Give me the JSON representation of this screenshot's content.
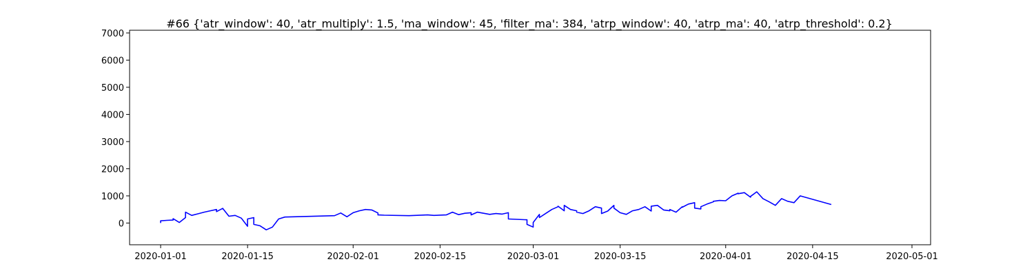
{
  "chart_data": {
    "type": "line",
    "title": "#66 {'atr_window': 40, 'atr_multiply': 1.5, 'ma_window': 45, 'filter_ma': 384, 'atrp_window': 40, 'atrp_ma': 40, 'atrp_threshold': 0.2}",
    "xlabel": "",
    "ylabel": "",
    "x_type": "date",
    "xlim": [
      "2019-12-27",
      "2020-05-04"
    ],
    "ylim": [
      -800,
      7100
    ],
    "x_ticks": [
      "2020-01-01",
      "2020-01-15",
      "2020-02-01",
      "2020-02-15",
      "2020-03-01",
      "2020-03-15",
      "2020-04-01",
      "2020-04-15",
      "2020-05-01"
    ],
    "y_ticks": [
      0,
      1000,
      2000,
      3000,
      4000,
      5000,
      6000,
      7000
    ],
    "grid": false,
    "legend": "none",
    "series": [
      {
        "color": "#0000ff",
        "points": [
          [
            "2020-01-01",
            0
          ],
          [
            "2020-01-01",
            80
          ],
          [
            "2020-01-02",
            100
          ],
          [
            "2020-01-03",
            110
          ],
          [
            "2020-01-03",
            160
          ],
          [
            "2020-01-04",
            20
          ],
          [
            "2020-01-05",
            200
          ],
          [
            "2020-01-05",
            400
          ],
          [
            "2020-01-06",
            280
          ],
          [
            "2020-01-07",
            340
          ],
          [
            "2020-01-08",
            400
          ],
          [
            "2020-01-09",
            450
          ],
          [
            "2020-01-10",
            500
          ],
          [
            "2020-01-10",
            420
          ],
          [
            "2020-01-11",
            540
          ],
          [
            "2020-01-12",
            250
          ],
          [
            "2020-01-13",
            280
          ],
          [
            "2020-01-14",
            180
          ],
          [
            "2020-01-15",
            -120
          ],
          [
            "2020-01-15",
            150
          ],
          [
            "2020-01-16",
            200
          ],
          [
            "2020-01-16",
            -50
          ],
          [
            "2020-01-17",
            -100
          ],
          [
            "2020-01-18",
            -250
          ],
          [
            "2020-01-19",
            -150
          ],
          [
            "2020-01-20",
            150
          ],
          [
            "2020-01-21",
            220
          ],
          [
            "2020-01-29",
            270
          ],
          [
            "2020-01-30",
            370
          ],
          [
            "2020-01-31",
            230
          ],
          [
            "2020-02-01",
            380
          ],
          [
            "2020-02-02",
            450
          ],
          [
            "2020-02-03",
            500
          ],
          [
            "2020-02-04",
            480
          ],
          [
            "2020-02-05",
            370
          ],
          [
            "2020-02-05",
            300
          ],
          [
            "2020-02-06",
            290
          ],
          [
            "2020-02-10",
            270
          ],
          [
            "2020-02-13",
            300
          ],
          [
            "2020-02-14",
            280
          ],
          [
            "2020-02-16",
            300
          ],
          [
            "2020-02-17",
            400
          ],
          [
            "2020-02-18",
            310
          ],
          [
            "2020-02-19",
            360
          ],
          [
            "2020-02-20",
            380
          ],
          [
            "2020-02-20",
            300
          ],
          [
            "2020-02-21",
            400
          ],
          [
            "2020-02-22",
            360
          ],
          [
            "2020-02-23",
            320
          ],
          [
            "2020-02-24",
            350
          ],
          [
            "2020-02-25",
            330
          ],
          [
            "2020-02-26",
            380
          ],
          [
            "2020-02-26",
            150
          ],
          [
            "2020-02-29",
            120
          ],
          [
            "2020-02-29",
            -50
          ],
          [
            "2020-03-01",
            -150
          ],
          [
            "2020-03-01",
            20
          ],
          [
            "2020-03-02",
            320
          ],
          [
            "2020-03-02",
            200
          ],
          [
            "2020-03-03",
            350
          ],
          [
            "2020-03-04",
            500
          ],
          [
            "2020-03-05",
            600
          ],
          [
            "2020-03-05",
            620
          ],
          [
            "2020-03-06",
            450
          ],
          [
            "2020-03-06",
            650
          ],
          [
            "2020-03-07",
            500
          ],
          [
            "2020-03-08",
            450
          ],
          [
            "2020-03-08",
            400
          ],
          [
            "2020-03-09",
            350
          ],
          [
            "2020-03-10",
            450
          ],
          [
            "2020-03-11",
            600
          ],
          [
            "2020-03-12",
            550
          ],
          [
            "2020-03-12",
            350
          ],
          [
            "2020-03-13",
            440
          ],
          [
            "2020-03-14",
            650
          ],
          [
            "2020-03-14",
            550
          ],
          [
            "2020-03-15",
            380
          ],
          [
            "2020-03-16",
            320
          ],
          [
            "2020-03-17",
            450
          ],
          [
            "2020-03-18",
            500
          ],
          [
            "2020-03-19",
            600
          ],
          [
            "2020-03-20",
            440
          ],
          [
            "2020-03-20",
            620
          ],
          [
            "2020-03-21",
            650
          ],
          [
            "2020-03-22",
            480
          ],
          [
            "2020-03-23",
            450
          ],
          [
            "2020-03-23",
            500
          ],
          [
            "2020-03-24",
            400
          ],
          [
            "2020-03-25",
            600
          ],
          [
            "2020-03-25",
            580
          ],
          [
            "2020-03-26",
            700
          ],
          [
            "2020-03-27",
            750
          ],
          [
            "2020-03-27",
            550
          ],
          [
            "2020-03-28",
            520
          ],
          [
            "2020-03-28",
            600
          ],
          [
            "2020-03-29",
            700
          ],
          [
            "2020-03-30",
            780
          ],
          [
            "2020-03-30",
            800
          ],
          [
            "2020-03-31",
            830
          ],
          [
            "2020-04-01",
            820
          ],
          [
            "2020-04-02",
            1000
          ],
          [
            "2020-04-03",
            1100
          ],
          [
            "2020-04-03",
            1080
          ],
          [
            "2020-04-04",
            1120
          ],
          [
            "2020-04-05",
            950
          ],
          [
            "2020-04-05",
            980
          ],
          [
            "2020-04-06",
            1150
          ],
          [
            "2020-04-07",
            900
          ],
          [
            "2020-04-08",
            780
          ],
          [
            "2020-04-09",
            650
          ],
          [
            "2020-04-10",
            900
          ],
          [
            "2020-04-11",
            800
          ],
          [
            "2020-04-12",
            750
          ],
          [
            "2020-04-13",
            1000
          ],
          [
            "2020-04-18",
            680
          ]
        ]
      }
    ]
  }
}
